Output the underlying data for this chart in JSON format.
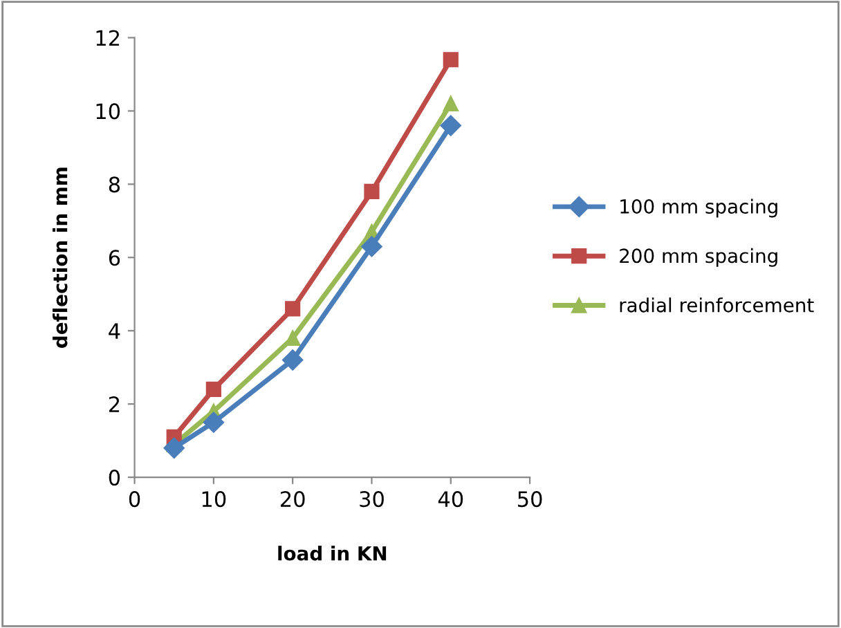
{
  "chart_data": {
    "type": "line",
    "xlabel": "load in KN",
    "ylabel": "deflection in mm",
    "x": [
      5,
      10,
      20,
      30,
      40
    ],
    "xlim": [
      0,
      50
    ],
    "xticks": [
      0,
      10,
      20,
      30,
      40,
      50
    ],
    "ylim": [
      0,
      12
    ],
    "yticks": [
      0,
      2,
      4,
      6,
      8,
      10,
      12
    ],
    "grid": false,
    "legend": "right",
    "line_style": "solid",
    "series": [
      {
        "name": "100 mm spacing",
        "color": "#4a7ebb",
        "marker": "diamond",
        "values": [
          0.8,
          1.5,
          3.2,
          6.3,
          9.6
        ]
      },
      {
        "name": "200 mm spacing",
        "color": "#be4b48",
        "marker": "square",
        "values": [
          1.1,
          2.4,
          4.6,
          7.8,
          11.4
        ]
      },
      {
        "name": "radial reinforcement",
        "color": "#98b954",
        "marker": "triangle",
        "values": [
          0.9,
          1.8,
          3.8,
          6.7,
          10.2
        ]
      }
    ]
  }
}
